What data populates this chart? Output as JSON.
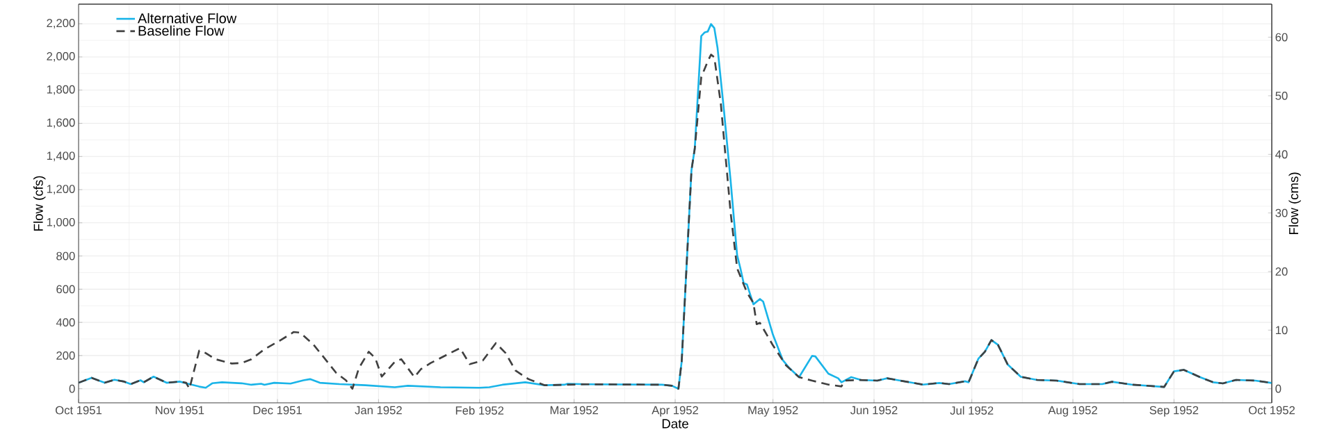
{
  "chart_data": {
    "type": "line",
    "xlabel": "Date",
    "ylabel": "Flow (cfs)",
    "y2label": "Flow (cms)",
    "xlim": [
      "1951-10-01",
      "1952-10-01"
    ],
    "xticks": [
      {
        "value": "1951-10-01",
        "label": "Oct 1951"
      },
      {
        "value": "1951-11-01",
        "label": "Nov 1951"
      },
      {
        "value": "1951-12-01",
        "label": "Dec 1951"
      },
      {
        "value": "1952-01-01",
        "label": "Jan 1952"
      },
      {
        "value": "1952-02-01",
        "label": "Feb 1952"
      },
      {
        "value": "1952-03-01",
        "label": "Mar 1952"
      },
      {
        "value": "1952-04-01",
        "label": "Apr 1952"
      },
      {
        "value": "1952-05-01",
        "label": "May 1952"
      },
      {
        "value": "1952-06-01",
        "label": "Jun 1952"
      },
      {
        "value": "1952-07-01",
        "label": "Jul 1952"
      },
      {
        "value": "1952-08-01",
        "label": "Aug 1952"
      },
      {
        "value": "1952-09-01",
        "label": "Sep 1952"
      },
      {
        "value": "1952-10-01",
        "label": "Oct 1952"
      }
    ],
    "ylim": [
      -85,
      2318
    ],
    "yticks": [
      0,
      200,
      400,
      600,
      800,
      {
        "value": 1000,
        "label": "1,000"
      },
      {
        "value": 1200,
        "label": "1,200"
      },
      {
        "value": 1400,
        "label": "1,400"
      },
      {
        "value": 1600,
        "label": "1,600"
      },
      {
        "value": 1800,
        "label": "1,800"
      },
      {
        "value": 2000,
        "label": "2,000"
      },
      {
        "value": 2200,
        "label": "2,200"
      }
    ],
    "y2lim": [
      -2.41,
      65.64
    ],
    "y2ticks": [
      0,
      10,
      20,
      30,
      40,
      50,
      60
    ],
    "grid": true,
    "legend": "top left",
    "marker": "none",
    "series": [
      {
        "name": "Alternative Flow",
        "color": "#1ab4e8",
        "line_style": "solid",
        "x": [
          "1951-10-01",
          "1951-10-05",
          "1951-10-09",
          "1951-10-12",
          "1951-10-15",
          "1951-10-17",
          "1951-10-20",
          "1951-10-21",
          "1951-10-24",
          "1951-10-28",
          "1951-11-01",
          "1951-11-04",
          "1951-11-07",
          "1951-11-09",
          "1951-11-11",
          "1951-11-14",
          "1951-11-20",
          "1951-11-23",
          "1951-11-26",
          "1951-11-27",
          "1951-11-30",
          "1951-12-05",
          "1951-12-09",
          "1951-12-11",
          "1951-12-14",
          "1951-12-20",
          "1951-12-28",
          "1952-01-06",
          "1952-01-10",
          "1952-01-20",
          "1952-02-01",
          "1952-02-04",
          "1952-02-08",
          "1952-02-15",
          "1952-02-21",
          "1952-02-27",
          "1952-02-28",
          "1952-03-05",
          "1952-03-28",
          "1952-03-31",
          "1952-04-02",
          "1952-04-03",
          "1952-04-05",
          "1952-04-06",
          "1952-04-07",
          "1952-04-09",
          "1952-04-10",
          "1952-04-11",
          "1952-04-12",
          "1952-04-13",
          "1952-04-14",
          "1952-04-16",
          "1952-04-18",
          "1952-04-20",
          "1952-04-21",
          "1952-04-22",
          "1952-04-23",
          "1952-04-25",
          "1952-04-27",
          "1952-04-28",
          "1952-05-01",
          "1952-05-04",
          "1952-05-06",
          "1952-05-09",
          "1952-05-13",
          "1952-05-14",
          "1952-05-18",
          "1952-05-21",
          "1952-05-22",
          "1952-05-25",
          "1952-05-28",
          "1952-06-02",
          "1952-06-05",
          "1952-06-07",
          "1952-06-16",
          "1952-06-21",
          "1952-06-24",
          "1952-06-29",
          "1952-06-30",
          "1952-07-03",
          "1952-07-05",
          "1952-07-07",
          "1952-07-09",
          "1952-07-12",
          "1952-07-16",
          "1952-07-21",
          "1952-07-27",
          "1952-08-03",
          "1952-08-10",
          "1952-08-13",
          "1952-08-19",
          "1952-08-29",
          "1952-09-01",
          "1952-09-04",
          "1952-09-09",
          "1952-09-13",
          "1952-09-16",
          "1952-09-20",
          "1952-09-26",
          "1952-10-01"
        ],
        "values": [
          36,
          66,
          36,
          54,
          43,
          28,
          51,
          39,
          73,
          36,
          43,
          28,
          13,
          6,
          33,
          39,
          33,
          24,
          30,
          24,
          36,
          31,
          51,
          58,
          36,
          28,
          21,
          9,
          18,
          9,
          6,
          9,
          24,
          39,
          21,
          24,
          30,
          27,
          24,
          18,
          0,
          165,
          933,
          1318,
          1446,
          2126,
          2147,
          2153,
          2198,
          2174,
          2054,
          1670,
          1254,
          805,
          726,
          637,
          629,
          509,
          541,
          525,
          325,
          173,
          125,
          70,
          198,
          195,
          91,
          63,
          39,
          70,
          53,
          49,
          63,
          56,
          25,
          35,
          28,
          45,
          39,
          181,
          223,
          293,
          265,
          146,
          72,
          53,
          49,
          28,
          28,
          42,
          25,
          11,
          105,
          114,
          70,
          39,
          32,
          53,
          49,
          35
        ]
      },
      {
        "name": "Baseline Flow",
        "color": "#404040",
        "line_style": "dashed",
        "x": [
          "1951-10-01",
          "1951-10-05",
          "1951-10-09",
          "1951-10-12",
          "1951-10-15",
          "1951-10-17",
          "1951-10-20",
          "1951-10-21",
          "1951-10-24",
          "1951-10-28",
          "1951-11-01",
          "1951-11-03",
          "1951-11-04",
          "1951-11-07",
          "1951-11-09",
          "1951-11-12",
          "1951-11-17",
          "1951-11-20",
          "1951-11-23",
          "1951-11-27",
          "1951-12-02",
          "1951-12-06",
          "1951-12-08",
          "1951-12-12",
          "1951-12-16",
          "1951-12-19",
          "1951-12-22",
          "1951-12-24",
          "1951-12-26",
          "1951-12-29",
          "1951-12-31",
          "1952-01-02",
          "1952-01-06",
          "1952-01-08",
          "1952-01-12",
          "1952-01-14",
          "1952-01-17",
          "1952-01-20",
          "1952-01-26",
          "1952-01-29",
          "1952-02-02",
          "1952-02-06",
          "1952-02-09",
          "1952-02-12",
          "1952-02-16",
          "1952-02-21",
          "1952-02-27",
          "1952-03-05",
          "1952-03-28",
          "1952-03-31",
          "1952-04-02",
          "1952-04-03",
          "1952-04-05",
          "1952-04-06",
          "1952-04-07",
          "1952-04-09",
          "1952-04-11",
          "1952-04-12",
          "1952-04-13",
          "1952-04-15",
          "1952-04-18",
          "1952-04-20",
          "1952-04-23",
          "1952-04-25",
          "1952-04-26",
          "1952-04-27",
          "1952-05-01",
          "1952-05-05",
          "1952-05-09",
          "1952-05-13",
          "1952-05-18",
          "1952-05-22",
          "1952-05-23",
          "1952-05-27",
          "1952-06-02",
          "1952-06-05",
          "1952-06-07",
          "1952-06-16",
          "1952-06-21",
          "1952-06-24",
          "1952-06-29",
          "1952-06-30",
          "1952-07-03",
          "1952-07-05",
          "1952-07-07",
          "1952-07-09",
          "1952-07-12",
          "1952-07-16",
          "1952-07-21",
          "1952-07-27",
          "1952-08-03",
          "1952-08-10",
          "1952-08-13",
          "1952-08-19",
          "1952-08-29",
          "1952-09-01",
          "1952-09-04",
          "1952-09-09",
          "1952-09-13",
          "1952-09-16",
          "1952-09-20",
          "1952-09-26",
          "1952-10-01"
        ],
        "values": [
          36,
          66,
          36,
          54,
          43,
          28,
          51,
          39,
          73,
          36,
          43,
          36,
          0,
          230,
          215,
          178,
          152,
          155,
          178,
          238,
          293,
          342,
          338,
          267,
          170,
          96,
          51,
          0,
          125,
          223,
          185,
          73,
          163,
          178,
          70,
          118,
          155,
          185,
          245,
          148,
          170,
          275,
          215,
          110,
          58,
          21,
          24,
          27,
          24,
          18,
          0,
          165,
          933,
          1318,
          1446,
          1878,
          1974,
          2014,
          1998,
          1718,
          1062,
          726,
          581,
          517,
          389,
          397,
          261,
          141,
          70,
          49,
          25,
          14,
          49,
          53,
          49,
          63,
          56,
          25,
          35,
          28,
          45,
          39,
          181,
          223,
          293,
          265,
          146,
          72,
          53,
          49,
          28,
          28,
          42,
          25,
          11,
          105,
          114,
          70,
          39,
          32,
          53,
          49,
          35
        ]
      }
    ]
  }
}
